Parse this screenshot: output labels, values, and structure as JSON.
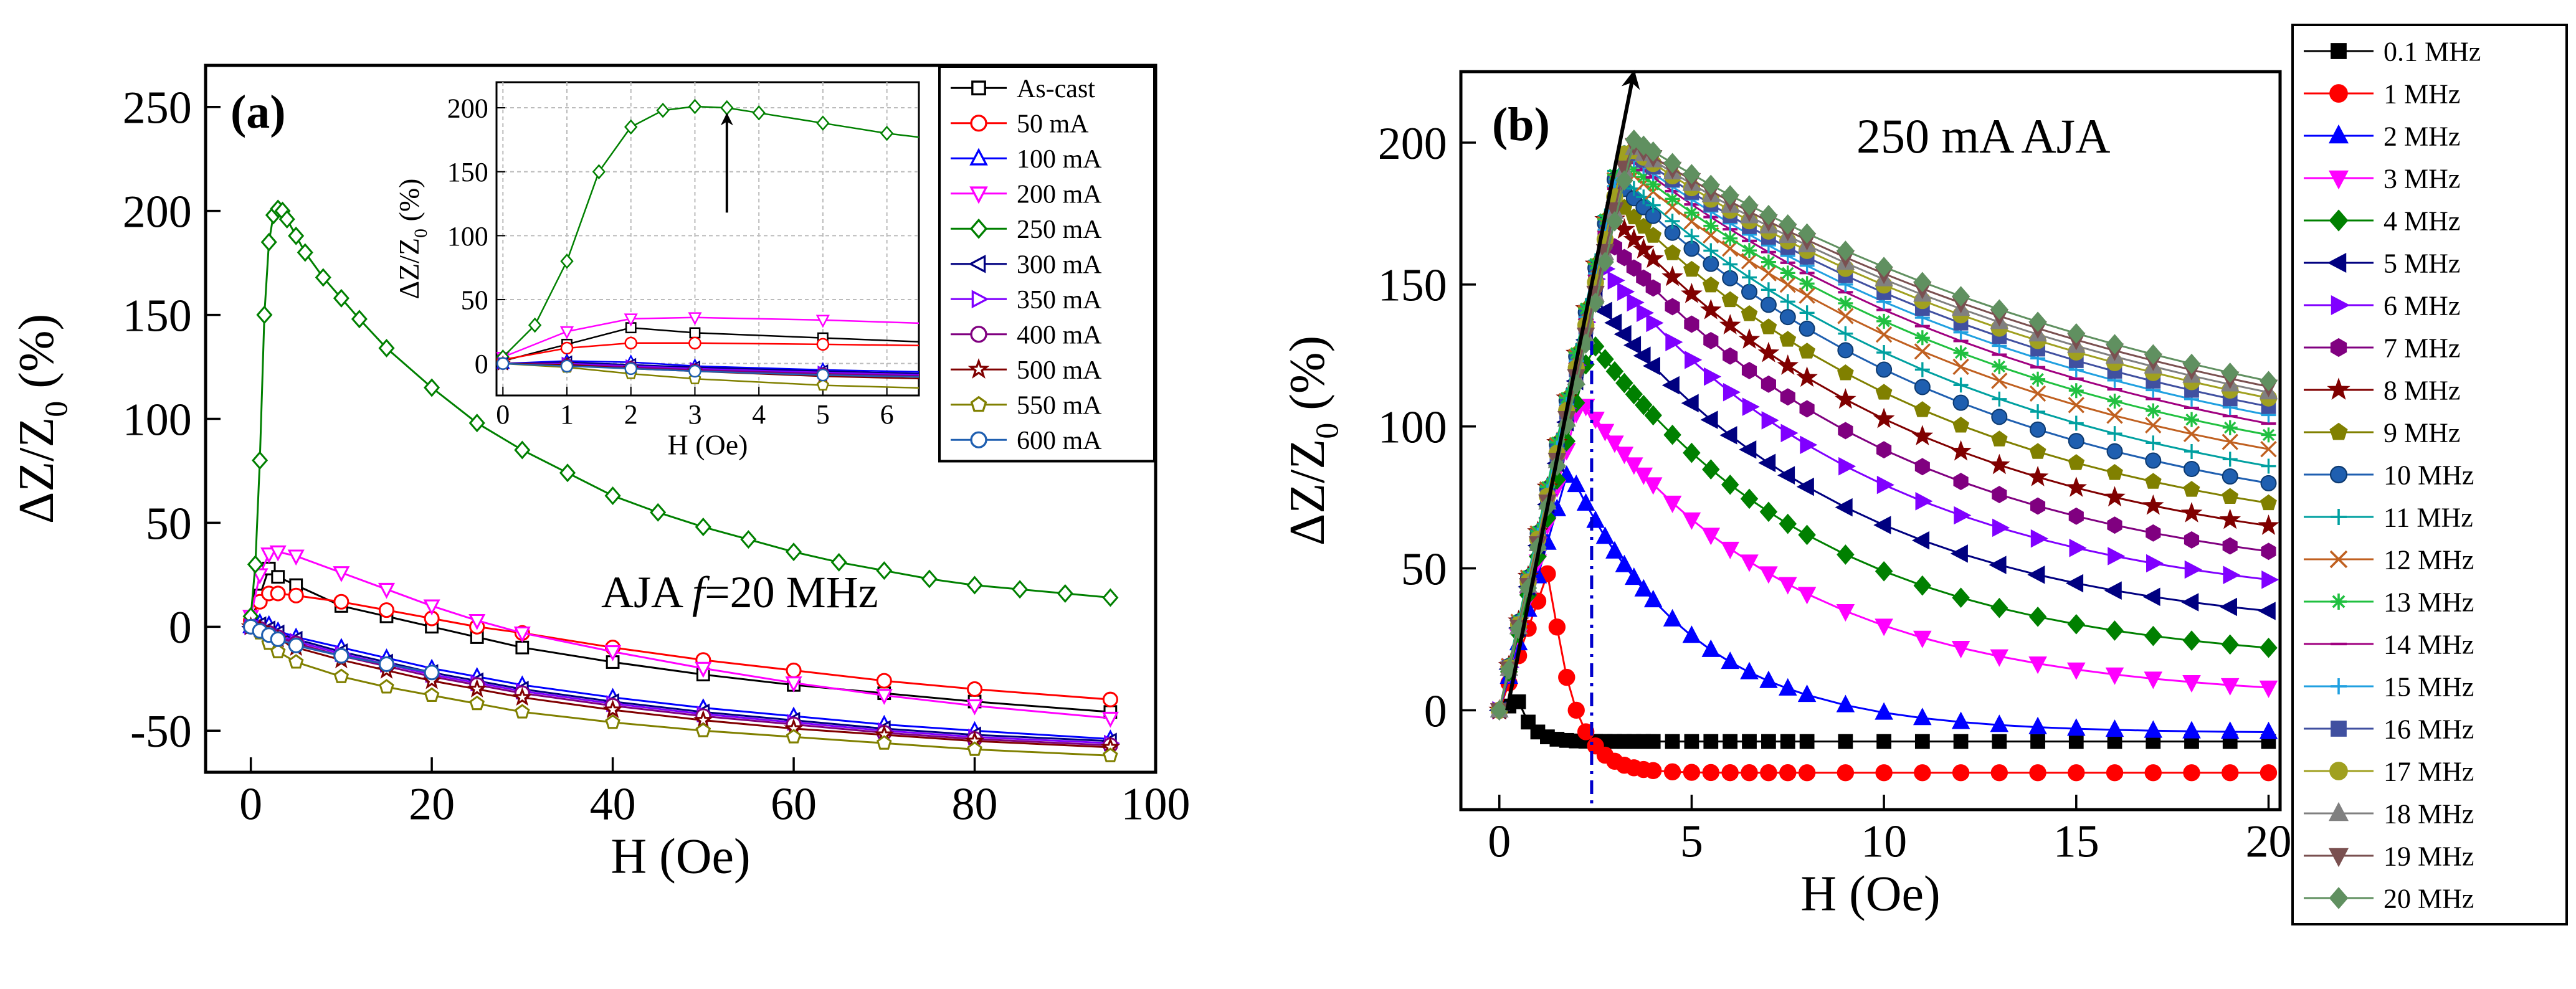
{
  "chart_data": [
    {
      "type": "line",
      "panel_label": "(a)",
      "xlabel": "H (Oe)",
      "ylabel": "ΔZ/Z0 (%)",
      "xlim": [
        -5,
        100
      ],
      "ylim": [
        -70,
        270
      ],
      "xticks": [
        0,
        20,
        40,
        60,
        80,
        100
      ],
      "yticks": [
        -50,
        0,
        50,
        100,
        150,
        200,
        250
      ],
      "annotation": {
        "prefix": "AJA ",
        "f": "f",
        "suffix": "=20 MHz"
      },
      "series": [
        {
          "name": "As-cast",
          "color": "#000000",
          "marker": "square",
          "x": [
            0,
            1,
            2,
            3,
            5,
            10,
            15,
            20,
            25,
            30,
            40,
            50,
            60,
            70,
            80,
            95
          ],
          "y": [
            2,
            15,
            28,
            24,
            20,
            10,
            5,
            0,
            -5,
            -10,
            -17,
            -23,
            -28,
            -32,
            -36,
            -41
          ]
        },
        {
          "name": "50 mA",
          "color": "#ff0000",
          "marker": "circle",
          "x": [
            0,
            1,
            2,
            3,
            5,
            10,
            15,
            20,
            25,
            30,
            40,
            50,
            60,
            70,
            80,
            95
          ],
          "y": [
            3,
            12,
            16,
            16,
            15,
            12,
            8,
            4,
            0,
            -3,
            -10,
            -16,
            -21,
            -26,
            -30,
            -35
          ]
        },
        {
          "name": "100 mA",
          "color": "#0000ff",
          "marker": "triangle-up",
          "x": [
            0,
            1,
            2,
            3,
            5,
            10,
            15,
            20,
            25,
            30,
            40,
            50,
            60,
            70,
            80,
            95
          ],
          "y": [
            0,
            2,
            1,
            -2,
            -5,
            -10,
            -15,
            -20,
            -24,
            -28,
            -34,
            -39,
            -43,
            -47,
            -50,
            -54
          ]
        },
        {
          "name": "200 mA",
          "color": "#ff00ff",
          "marker": "triangle-down",
          "x": [
            0,
            1,
            2,
            3,
            5,
            10,
            15,
            20,
            25,
            30,
            40,
            50,
            60,
            70,
            80,
            95
          ],
          "y": [
            5,
            25,
            35,
            36,
            34,
            26,
            18,
            10,
            3,
            -3,
            -12,
            -20,
            -27,
            -33,
            -38,
            -44
          ]
        },
        {
          "name": "250 mA",
          "color": "#008000",
          "marker": "diamond",
          "x": [
            0,
            0.5,
            1,
            1.5,
            2,
            2.5,
            3,
            3.5,
            4,
            5,
            6,
            8,
            10,
            12,
            15,
            20,
            25,
            30,
            35,
            40,
            45,
            50,
            55,
            60,
            65,
            70,
            75,
            80,
            85,
            90,
            95
          ],
          "y": [
            5,
            30,
            80,
            150,
            185,
            198,
            201,
            200,
            196,
            188,
            180,
            168,
            158,
            148,
            134,
            115,
            98,
            85,
            74,
            63,
            55,
            48,
            42,
            36,
            31,
            27,
            23,
            20,
            18,
            16,
            14
          ]
        },
        {
          "name": "300 mA",
          "color": "#000080",
          "marker": "triangle-left",
          "x": [
            0,
            1,
            2,
            3,
            5,
            10,
            15,
            20,
            25,
            30,
            40,
            50,
            60,
            70,
            80,
            95
          ],
          "y": [
            0,
            1,
            -1,
            -3,
            -6,
            -12,
            -17,
            -22,
            -26,
            -30,
            -36,
            -41,
            -45,
            -49,
            -52,
            -55
          ]
        },
        {
          "name": "350 mA",
          "color": "#8000ff",
          "marker": "triangle-right",
          "x": [
            0,
            1,
            2,
            3,
            5,
            10,
            15,
            20,
            25,
            30,
            40,
            50,
            60,
            70,
            80,
            95
          ],
          "y": [
            0,
            0,
            -2,
            -4,
            -7,
            -13,
            -18,
            -23,
            -27,
            -31,
            -37,
            -42,
            -46,
            -50,
            -53,
            -56
          ]
        },
        {
          "name": "400 mA",
          "color": "#800080",
          "marker": "circle",
          "x": [
            0,
            1,
            2,
            3,
            5,
            10,
            15,
            20,
            25,
            30,
            40,
            50,
            60,
            70,
            80,
            95
          ],
          "y": [
            0,
            -1,
            -3,
            -5,
            -8,
            -14,
            -19,
            -24,
            -28,
            -32,
            -38,
            -43,
            -47,
            -51,
            -54,
            -57
          ]
        },
        {
          "name": "500 mA",
          "color": "#800000",
          "marker": "star",
          "x": [
            0,
            1,
            2,
            3,
            5,
            10,
            15,
            20,
            25,
            30,
            40,
            50,
            60,
            70,
            80,
            95
          ],
          "y": [
            0,
            -1,
            -4,
            -6,
            -10,
            -16,
            -21,
            -26,
            -30,
            -34,
            -40,
            -45,
            -49,
            -52,
            -55,
            -58
          ]
        },
        {
          "name": "550 mA",
          "color": "#808000",
          "marker": "pentagon",
          "x": [
            0,
            1,
            2,
            3,
            5,
            10,
            15,
            20,
            25,
            30,
            40,
            50,
            60,
            70,
            80,
            95
          ],
          "y": [
            0,
            -3,
            -8,
            -12,
            -17,
            -24,
            -29,
            -33,
            -37,
            -41,
            -46,
            -50,
            -53,
            -56,
            -59,
            -62
          ]
        },
        {
          "name": "600 mA",
          "color": "#1f5fb0",
          "marker": "circle",
          "x": [
            0,
            1,
            2,
            3,
            5,
            10,
            15,
            20
          ],
          "y": [
            0,
            -2,
            -4,
            -6,
            -9,
            -14,
            -18,
            -22
          ]
        }
      ],
      "inset": {
        "xlabel": "H (Oe)",
        "ylabel": "ΔZ/Z0 (%)",
        "xlim": [
          -0.1,
          6.5
        ],
        "ylim": [
          -25,
          220
        ],
        "xticks": [
          0,
          1,
          2,
          3,
          4,
          5,
          6
        ],
        "yticks": [
          0,
          50,
          100,
          150,
          200
        ],
        "grid": true,
        "arrow": {
          "x": 3.5,
          "y_from": 118,
          "y_to": 195
        }
      }
    },
    {
      "type": "line",
      "panel_label": "(b)",
      "title": "250 mA AJA",
      "xlabel": "H (Oe)",
      "ylabel": "ΔZ/Z0 (%)",
      "xlim": [
        -1,
        20.3
      ],
      "ylim": [
        -35,
        225
      ],
      "xticks": [
        0,
        5,
        10,
        15,
        20
      ],
      "yticks": [
        0,
        50,
        100,
        150,
        200
      ],
      "dash_line_x": 2.4,
      "peak_arrow": {
        "from": [
          0.2,
          0
        ],
        "to": [
          3.5,
          225
        ]
      },
      "series": [
        {
          "name": "0.1 MHz",
          "color": "#000000",
          "marker": "square",
          "peak": 3,
          "hp": 0.5,
          "end": -11
        },
        {
          "name": "1 MHz",
          "color": "#ff0000",
          "marker": "circle",
          "peak": 50,
          "hp": 1.3,
          "end": -22
        },
        {
          "name": "2 MHz",
          "color": "#0000ff",
          "marker": "triangle-up",
          "peak": 85,
          "hp": 1.8,
          "end": -8
        },
        {
          "name": "3 MHz",
          "color": "#ff00ff",
          "marker": "triangle-down",
          "peak": 110,
          "hp": 2.1,
          "end": 8
        },
        {
          "name": "4 MHz",
          "color": "#008000",
          "marker": "diamond",
          "peak": 130,
          "hp": 2.4,
          "end": 22
        },
        {
          "name": "5 MHz",
          "color": "#000080",
          "marker": "triangle-left",
          "peak": 145,
          "hp": 2.5,
          "end": 35
        },
        {
          "name": "6 MHz",
          "color": "#8000ff",
          "marker": "triangle-right",
          "peak": 158,
          "hp": 2.6,
          "end": 46
        },
        {
          "name": "7 MHz",
          "color": "#800080",
          "marker": "hexagon",
          "peak": 168,
          "hp": 2.7,
          "end": 56
        },
        {
          "name": "8 MHz",
          "color": "#800000",
          "marker": "star",
          "peak": 176,
          "hp": 2.8,
          "end": 65
        },
        {
          "name": "9 MHz",
          "color": "#808000",
          "marker": "pentagon",
          "peak": 182,
          "hp": 2.9,
          "end": 73
        },
        {
          "name": "10 MHz",
          "color": "#1f5fb0",
          "marker": "sphere",
          "peak": 187,
          "hp": 3.0,
          "end": 80
        },
        {
          "name": "11 MHz",
          "color": "#00a0a0",
          "marker": "plus",
          "peak": 190,
          "hp": 3.0,
          "end": 86
        },
        {
          "name": "12 MHz",
          "color": "#c06020",
          "marker": "x",
          "peak": 193,
          "hp": 3.1,
          "end": 92
        },
        {
          "name": "13 MHz",
          "color": "#20c040",
          "marker": "asterisk",
          "peak": 195,
          "hp": 3.1,
          "end": 97
        },
        {
          "name": "14 MHz",
          "color": "#a00080",
          "marker": "dash",
          "peak": 196,
          "hp": 3.2,
          "end": 101
        },
        {
          "name": "15 MHz",
          "color": "#20a0e0",
          "marker": "plus",
          "peak": 197,
          "hp": 3.2,
          "end": 104
        },
        {
          "name": "16 MHz",
          "color": "#4050a0",
          "marker": "square",
          "peak": 198,
          "hp": 3.3,
          "end": 107
        },
        {
          "name": "17 MHz",
          "color": "#a0a020",
          "marker": "circle",
          "peak": 199,
          "hp": 3.3,
          "end": 110
        },
        {
          "name": "18 MHz",
          "color": "#808080",
          "marker": "triangle-up",
          "peak": 199,
          "hp": 3.4,
          "end": 112
        },
        {
          "name": "19 MHz",
          "color": "#7a5050",
          "marker": "triangle-down",
          "peak": 200,
          "hp": 3.4,
          "end": 114
        },
        {
          "name": "20 MHz",
          "color": "#609060",
          "marker": "diamond",
          "peak": 201,
          "hp": 3.5,
          "end": 116
        }
      ]
    }
  ]
}
